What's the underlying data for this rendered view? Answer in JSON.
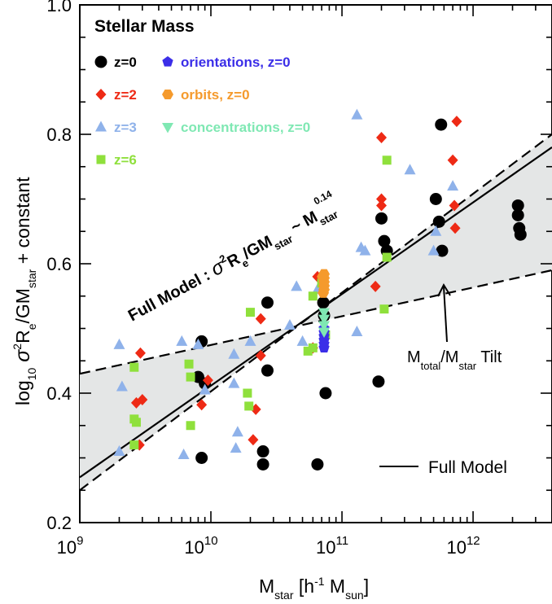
{
  "chart_data": {
    "type": "scatter",
    "title": "Stellar Mass",
    "xlabel": {
      "base": "M",
      "sub": "star",
      "rest": " [h",
      "sup": "-1",
      "rest2": " M",
      "sub2": "sun",
      "close": "]"
    },
    "ylabel": {
      "pre": "log",
      "sub": "10",
      "mid": " σ",
      "sup": "2",
      "r": "R",
      "sub2": "e",
      "gm": "/GM",
      "sub3": "star",
      "post": " + constant"
    },
    "xscale": "log",
    "xlim": [
      1000000000.0,
      4000000000000.0
    ],
    "ylim": [
      0.2,
      1.0
    ],
    "x_ticks": [
      {
        "value": 1000000000.0,
        "base": "10",
        "exp": "9"
      },
      {
        "value": 10000000000.0,
        "base": "10",
        "exp": "10"
      },
      {
        "value": 100000000000.0,
        "base": "10",
        "exp": "11"
      },
      {
        "value": 1000000000000.0,
        "base": "10",
        "exp": "12"
      }
    ],
    "y_ticks": [
      {
        "value": 0.2,
        "label": "0.2"
      },
      {
        "value": 0.4,
        "label": "0.4"
      },
      {
        "value": 0.6,
        "label": "0.6"
      },
      {
        "value": 0.8,
        "label": "0.8"
      },
      {
        "value": 1.0,
        "label": "1.0"
      }
    ],
    "series": [
      {
        "name": "z=0",
        "marker": "circle",
        "color": "#000000",
        "points": [
          [
            8500000000.0,
            0.48
          ],
          [
            8000000000.0,
            0.425
          ],
          [
            9000000000.0,
            0.415
          ],
          [
            8500000000.0,
            0.3
          ],
          [
            25000000000.0,
            0.31
          ],
          [
            25000000000.0,
            0.29
          ],
          [
            27000000000.0,
            0.435
          ],
          [
            27000000000.0,
            0.54
          ],
          [
            65000000000.0,
            0.29
          ],
          [
            72000000000.0,
            0.54
          ],
          [
            73000000000.0,
            0.52
          ],
          [
            75000000000.0,
            0.4
          ],
          [
            190000000000.0,
            0.418
          ],
          [
            200000000000.0,
            0.67
          ],
          [
            220000000000.0,
            0.62
          ],
          [
            210000000000.0,
            0.635
          ],
          [
            520000000000.0,
            0.7
          ],
          [
            550000000000.0,
            0.665
          ],
          [
            580000000000.0,
            0.62
          ],
          [
            570000000000.0,
            0.815
          ],
          [
            2200000000000.0,
            0.69
          ],
          [
            2200000000000.0,
            0.675
          ],
          [
            2250000000000.0,
            0.655
          ],
          [
            2300000000000.0,
            0.645
          ]
        ]
      },
      {
        "name": "z=2",
        "marker": "diamond",
        "color": "#ee2a15",
        "points": [
          [
            2700000000.0,
            0.385
          ],
          [
            2900000000.0,
            0.462
          ],
          [
            3000000000.0,
            0.39
          ],
          [
            2850000000.0,
            0.32
          ],
          [
            8500000000.0,
            0.382
          ],
          [
            9500000000.0,
            0.42
          ],
          [
            22000000000.0,
            0.375
          ],
          [
            24000000000.0,
            0.458
          ],
          [
            24000000000.0,
            0.515
          ],
          [
            21000000000.0,
            0.328
          ],
          [
            60000000000.0,
            0.47
          ],
          [
            65000000000.0,
            0.58
          ],
          [
            180000000000.0,
            0.565
          ],
          [
            200000000000.0,
            0.795
          ],
          [
            200000000000.0,
            0.7
          ],
          [
            200000000000.0,
            0.69
          ],
          [
            750000000000.0,
            0.82
          ],
          [
            700000000000.0,
            0.76
          ],
          [
            720000000000.0,
            0.69
          ],
          [
            730000000000.0,
            0.655
          ]
        ]
      },
      {
        "name": "z=3",
        "marker": "triangle",
        "color": "#8fb2ea",
        "points": [
          [
            2000000000.0,
            0.475
          ],
          [
            2100000000.0,
            0.41
          ],
          [
            2000000000.0,
            0.31
          ],
          [
            6000000000.0,
            0.48
          ],
          [
            6200000000.0,
            0.305
          ],
          [
            8000000000.0,
            0.475
          ],
          [
            9000000000.0,
            0.405
          ],
          [
            15000000000.0,
            0.46
          ],
          [
            15000000000.0,
            0.415
          ],
          [
            16000000000.0,
            0.34
          ],
          [
            15500000000.0,
            0.315
          ],
          [
            20000000000.0,
            0.48
          ],
          [
            40000000000.0,
            0.505
          ],
          [
            45000000000.0,
            0.565
          ],
          [
            50000000000.0,
            0.48
          ],
          [
            65000000000.0,
            0.56
          ],
          [
            130000000000.0,
            0.83
          ],
          [
            130000000000.0,
            0.495
          ],
          [
            140000000000.0,
            0.625
          ],
          [
            150000000000.0,
            0.62
          ],
          [
            330000000000.0,
            0.745
          ],
          [
            500000000000.0,
            0.62
          ],
          [
            520000000000.0,
            0.65
          ],
          [
            700000000000.0,
            0.72
          ]
        ]
      },
      {
        "name": "z=6",
        "marker": "square",
        "color": "#8fe03c",
        "points": [
          [
            2600000000.0,
            0.44
          ],
          [
            2600000000.0,
            0.36
          ],
          [
            2700000000.0,
            0.355
          ],
          [
            2600000000.0,
            0.32
          ],
          [
            7000000000.0,
            0.425
          ],
          [
            7000000000.0,
            0.35
          ],
          [
            6800000000.0,
            0.445
          ],
          [
            20000000000.0,
            0.525
          ],
          [
            19000000000.0,
            0.4
          ],
          [
            19500000000.0,
            0.38
          ],
          [
            55000000000.0,
            0.465
          ],
          [
            60000000000.0,
            0.47
          ],
          [
            60000000000.0,
            0.55
          ],
          [
            70000000000.0,
            0.57
          ],
          [
            75000000000.0,
            0.49
          ],
          [
            220000000000.0,
            0.76
          ],
          [
            220000000000.0,
            0.61
          ],
          [
            210000000000.0,
            0.53
          ]
        ]
      },
      {
        "name": "orientations, z=0",
        "marker": "pentagon",
        "color": "#3b2ee8",
        "points": [
          [
            73000000000.0,
            0.47
          ],
          [
            73000000000.0,
            0.476
          ],
          [
            73000000000.0,
            0.482
          ],
          [
            73000000000.0,
            0.488
          ],
          [
            73000000000.0,
            0.494
          ],
          [
            73000000000.0,
            0.5
          ]
        ]
      },
      {
        "name": "orbits, z=0",
        "marker": "hexagon",
        "color": "#f59a2c",
        "points": [
          [
            73000000000.0,
            0.56
          ],
          [
            73000000000.0,
            0.566
          ],
          [
            73000000000.0,
            0.572
          ],
          [
            73000000000.0,
            0.578
          ],
          [
            73000000000.0,
            0.584
          ],
          [
            71000000000.0,
            0.58
          ],
          [
            72000000000.0,
            0.555
          ]
        ]
      },
      {
        "name": "concentrations, z=0",
        "marker": "triangle-down",
        "color": "#7fe8b3",
        "points": [
          [
            73000000000.0,
            0.495
          ],
          [
            73000000000.0,
            0.505
          ],
          [
            73000000000.0,
            0.515
          ],
          [
            73000000000.0,
            0.525
          ]
        ]
      }
    ],
    "lines": [
      {
        "name": "Full Model",
        "style": "solid",
        "points": [
          [
            1000000000.0,
            0.27
          ],
          [
            4000000000000.0,
            0.78
          ]
        ]
      },
      {
        "name": "upper-bound",
        "style": "dashed",
        "points": [
          [
            1000000000.0,
            0.25
          ],
          [
            4000000000000.0,
            0.8
          ]
        ]
      },
      {
        "name": "lower-bound",
        "style": "dashed",
        "points": [
          [
            1000000000.0,
            0.43
          ],
          [
            4000000000000.0,
            0.59
          ]
        ]
      }
    ],
    "shaded_band": {
      "color": "#e4e6e6",
      "between": [
        "upper-bound",
        "lower-bound"
      ]
    },
    "annotations": {
      "full_model_formula": {
        "prefix": "Full Model : ",
        "sigma": "σ",
        "two": "2",
        "r": "R",
        "e": "e",
        "gm": "/GM",
        "star": "star",
        "sim": " ~ M",
        "star2": "star",
        "exp": "0.14"
      },
      "tilt_label": {
        "m1": "M",
        "sub1": "total",
        "slash": "/M",
        "sub2": "star",
        "rest": " Tilt"
      },
      "line_legend": "Full Model"
    },
    "legend_placement": "top-left"
  }
}
